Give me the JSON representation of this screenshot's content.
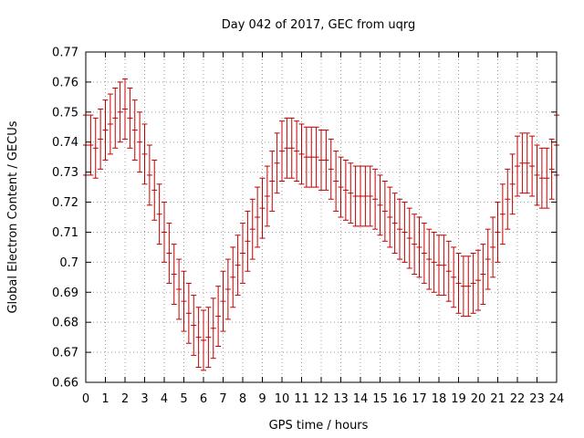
{
  "chart_data": {
    "type": "line",
    "title": "Day 042 of 2017, GEC from uqrg",
    "xlabel": "GPS time / hours",
    "ylabel": "Global Electron Content / GECUs",
    "xlim": [
      0,
      24
    ],
    "ylim": [
      0.66,
      0.77
    ],
    "xticks": [
      0,
      1,
      2,
      3,
      4,
      5,
      6,
      7,
      8,
      9,
      10,
      11,
      12,
      13,
      14,
      15,
      16,
      17,
      18,
      19,
      20,
      21,
      22,
      23,
      24
    ],
    "yticks": [
      0.66,
      0.67,
      0.68,
      0.69,
      0.7,
      0.71,
      0.72,
      0.73,
      0.74,
      0.75,
      0.76,
      0.77
    ],
    "ytick_labels": [
      "0.66",
      "0.67",
      "0.68",
      "0.69",
      "0.7",
      "0.71",
      "0.72",
      "0.73",
      "0.74",
      "0.75",
      "0.76",
      "0.77"
    ],
    "grid": true,
    "error_halfwidth": 0.01,
    "series": [
      {
        "color": "#c00000",
        "x": [
          0,
          0.25,
          0.5,
          0.75,
          1,
          1.25,
          1.5,
          1.75,
          2,
          2.25,
          2.5,
          2.75,
          3,
          3.25,
          3.5,
          3.75,
          4,
          4.25,
          4.5,
          4.75,
          5,
          5.25,
          5.5,
          5.75,
          6,
          6.25,
          6.5,
          6.75,
          7,
          7.25,
          7.5,
          7.75,
          8,
          8.25,
          8.5,
          8.75,
          9,
          9.25,
          9.5,
          9.75,
          10,
          10.25,
          10.5,
          10.75,
          11,
          11.25,
          11.5,
          11.75,
          12,
          12.25,
          12.5,
          12.75,
          13,
          13.25,
          13.5,
          13.75,
          14,
          14.25,
          14.5,
          14.75,
          15,
          15.25,
          15.5,
          15.75,
          16,
          16.25,
          16.5,
          16.75,
          17,
          17.25,
          17.5,
          17.75,
          18,
          18.25,
          18.5,
          18.75,
          19,
          19.25,
          19.5,
          19.75,
          20,
          20.25,
          20.5,
          20.75,
          21,
          21.25,
          21.5,
          21.75,
          22,
          22.25,
          22.5,
          22.75,
          23,
          23.25,
          23.5,
          23.75,
          24
        ],
        "y": [
          0.739,
          0.739,
          0.738,
          0.741,
          0.744,
          0.746,
          0.748,
          0.75,
          0.751,
          0.748,
          0.744,
          0.74,
          0.736,
          0.729,
          0.724,
          0.716,
          0.71,
          0.703,
          0.696,
          0.691,
          0.687,
          0.683,
          0.679,
          0.675,
          0.674,
          0.675,
          0.678,
          0.682,
          0.687,
          0.691,
          0.695,
          0.699,
          0.703,
          0.707,
          0.711,
          0.715,
          0.718,
          0.722,
          0.727,
          0.733,
          0.737,
          0.738,
          0.738,
          0.737,
          0.736,
          0.735,
          0.735,
          0.735,
          0.734,
          0.734,
          0.731,
          0.727,
          0.725,
          0.724,
          0.723,
          0.722,
          0.722,
          0.722,
          0.722,
          0.721,
          0.719,
          0.717,
          0.715,
          0.713,
          0.711,
          0.71,
          0.708,
          0.706,
          0.705,
          0.703,
          0.701,
          0.7,
          0.699,
          0.699,
          0.697,
          0.695,
          0.693,
          0.692,
          0.692,
          0.693,
          0.694,
          0.696,
          0.701,
          0.705,
          0.71,
          0.716,
          0.721,
          0.726,
          0.732,
          0.733,
          0.733,
          0.732,
          0.729,
          0.728,
          0.728,
          0.731,
          0.739
        ]
      }
    ]
  }
}
